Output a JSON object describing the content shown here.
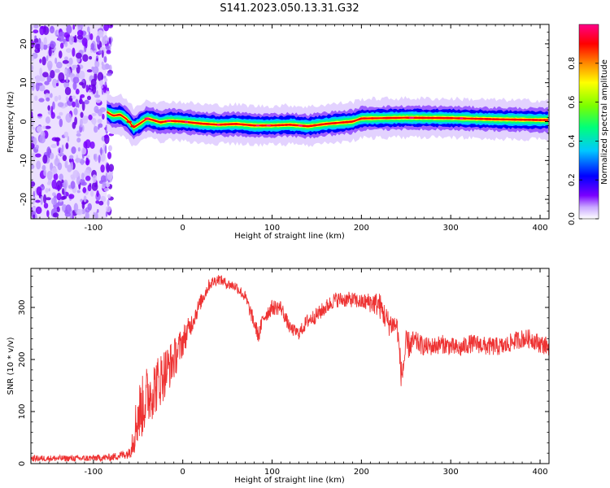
{
  "figure_title": "S141.2023.050.13.31.G32",
  "chart_data": [
    {
      "type": "heatmap",
      "title": "",
      "xlabel": "Height of straight line (km)",
      "ylabel": "Frequency (Hz)",
      "xlim": [
        -170,
        410
      ],
      "ylim": [
        -25,
        25
      ],
      "xticks": [
        -100,
        0,
        100,
        200,
        300,
        400
      ],
      "yticks": [
        -20,
        -10,
        0,
        10,
        20
      ],
      "xtick_labels": [
        "-100",
        "0",
        "100",
        "200",
        "300",
        "400"
      ],
      "ytick_labels": [
        "-20",
        "-10",
        "0",
        "10",
        "20"
      ],
      "noise_region_x": [
        -170,
        -85
      ],
      "ridge": {
        "x": [
          -85,
          -78,
          -70,
          -62,
          -55,
          -48,
          -40,
          -32,
          -25,
          -15,
          0,
          20,
          40,
          60,
          80,
          100,
          120,
          140,
          160,
          180,
          190,
          200,
          250,
          300,
          350,
          400
        ],
        "freq": [
          2.5,
          1.5,
          1.8,
          0.5,
          -1.5,
          -0.5,
          0.8,
          0.3,
          -0.2,
          0.2,
          0.0,
          -0.5,
          -0.8,
          -0.6,
          -1.0,
          -1.0,
          -0.8,
          -1.2,
          -0.6,
          -0.2,
          0.0,
          0.8,
          1.0,
          0.9,
          0.6,
          0.4
        ]
      },
      "colorbar": {
        "label": "Normalized spectral amplitude",
        "range": [
          0.0,
          1.0
        ],
        "ticks": [
          0.0,
          0.2,
          0.4,
          0.6,
          0.8
        ],
        "tick_labels": [
          "0.0",
          "0.2",
          "0.4",
          "0.6",
          "0.8"
        ],
        "colormap": [
          "#ffffff",
          "#7a00ff",
          "#0000ff",
          "#00c8ff",
          "#00ff7a",
          "#7aff00",
          "#ffff00",
          "#ff8800",
          "#ff0000",
          "#ff0088"
        ]
      }
    },
    {
      "type": "line",
      "title": "",
      "xlabel": "Height of straight line (km)",
      "ylabel": "SNR (10 * v/v)",
      "xlim": [
        -170,
        410
      ],
      "ylim": [
        0,
        375
      ],
      "xticks": [
        -100,
        0,
        100,
        200,
        300,
        400
      ],
      "yticks": [
        0,
        100,
        200,
        300
      ],
      "xtick_labels": [
        "-100",
        "0",
        "100",
        "200",
        "300",
        "400"
      ],
      "ytick_labels": [
        "0",
        "100",
        "200",
        "300"
      ],
      "color": "#ee3333",
      "series": [
        {
          "x": [
            -170,
            -140,
            -110,
            -80,
            -60,
            -55,
            -50,
            -45,
            -40,
            -30,
            -20,
            -10,
            0,
            10,
            20,
            30,
            40,
            50,
            60,
            70,
            80,
            85,
            90,
            100,
            110,
            120,
            130,
            140,
            150,
            160,
            170,
            180,
            190,
            200,
            210,
            220,
            230,
            240,
            245,
            250,
            260,
            270,
            280,
            290,
            300,
            310,
            320,
            330,
            340,
            350,
            360,
            370,
            380,
            390,
            400,
            410
          ],
          "y": [
            10,
            10,
            10,
            12,
            20,
            55,
            95,
            110,
            130,
            150,
            175,
            200,
            235,
            270,
            310,
            345,
            355,
            345,
            340,
            320,
            270,
            245,
            280,
            300,
            300,
            260,
            250,
            275,
            285,
            300,
            315,
            315,
            315,
            310,
            310,
            305,
            270,
            265,
            165,
            225,
            235,
            225,
            225,
            230,
            225,
            220,
            230,
            230,
            225,
            225,
            225,
            235,
            240,
            240,
            230,
            225
          ],
          "noise_amplitude": [
            6,
            6,
            6,
            7,
            10,
            40,
            60,
            60,
            60,
            55,
            50,
            40,
            30,
            20,
            15,
            12,
            10,
            10,
            10,
            12,
            15,
            15,
            15,
            15,
            15,
            12,
            12,
            15,
            15,
            15,
            15,
            15,
            15,
            15,
            20,
            25,
            25,
            20,
            30,
            30,
            20,
            18,
            18,
            18,
            18,
            18,
            18,
            18,
            18,
            18,
            18,
            18,
            18,
            18,
            18,
            18
          ]
        }
      ]
    }
  ]
}
